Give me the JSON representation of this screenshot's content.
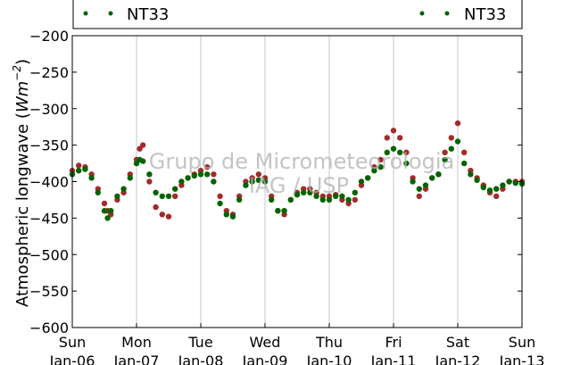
{
  "chart_data": {
    "type": "scatter",
    "title": "",
    "ylabel_text": "Atmospheric longwave (",
    "ylabel_unit_base": "Wm",
    "ylabel_unit_exp": "−2",
    "ylabel_close": ")",
    "ylim": [
      -600,
      -200
    ],
    "yticks": [
      -200,
      -250,
      -300,
      -350,
      -400,
      -450,
      -500,
      -550,
      -600
    ],
    "ytick_labels": [
      "−200",
      "−250",
      "−300",
      "−350",
      "−400",
      "−450",
      "−500",
      "−550",
      "−600"
    ],
    "x_ticks": [
      {
        "day": "Sun",
        "date": "Jan-06"
      },
      {
        "day": "Mon",
        "date": "Jan-07"
      },
      {
        "day": "Tue",
        "date": "Jan-08"
      },
      {
        "day": "Wed",
        "date": "Jan-09"
      },
      {
        "day": "Thu",
        "date": "Jan-10"
      },
      {
        "day": "Fri",
        "date": "Jan-11"
      },
      {
        "day": "Sat",
        "date": "Jan-12"
      },
      {
        "day": "Sun",
        "date": "Jan-13"
      }
    ],
    "xlim_days": [
      0,
      7
    ],
    "grid_x": true,
    "grid_y": false,
    "legend": {
      "placement": "top",
      "entries": [
        {
          "name": "NT33",
          "color": "#006400"
        },
        {
          "name": "NT33",
          "color": "#006400"
        }
      ]
    },
    "watermark": {
      "line1": "Grupo de Micrometeorologia",
      "line2": "IAG / USP"
    },
    "series": [
      {
        "color": "#a52a2a",
        "x": [
          0.0,
          0.1,
          0.2,
          0.3,
          0.4,
          0.5,
          0.55,
          0.6,
          0.7,
          0.8,
          0.9,
          1.0,
          1.05,
          1.1,
          1.2,
          1.3,
          1.4,
          1.5,
          1.6,
          1.7,
          1.8,
          1.9,
          2.0,
          2.1,
          2.2,
          2.3,
          2.4,
          2.5,
          2.6,
          2.7,
          2.8,
          2.9,
          3.0,
          3.1,
          3.2,
          3.3,
          3.4,
          3.5,
          3.6,
          3.7,
          3.8,
          3.9,
          4.0,
          4.1,
          4.2,
          4.3,
          4.4,
          4.5,
          4.6,
          4.7,
          4.8,
          4.9,
          5.0,
          5.1,
          5.2,
          5.3,
          5.4,
          5.5,
          5.6,
          5.7,
          5.8,
          5.9,
          6.0,
          6.1,
          6.2,
          6.3,
          6.4,
          6.5,
          6.6,
          6.7,
          6.8,
          6.9,
          7.0
        ],
        "y": [
          -385,
          -378,
          -380,
          -390,
          -410,
          -430,
          -440,
          -445,
          -425,
          -415,
          -390,
          -370,
          -355,
          -350,
          -400,
          -435,
          -445,
          -448,
          -420,
          -405,
          -395,
          -390,
          -385,
          -380,
          -390,
          -420,
          -440,
          -445,
          -420,
          -400,
          -395,
          -390,
          -395,
          -420,
          -440,
          -445,
          -425,
          -415,
          -410,
          -410,
          -415,
          -420,
          -420,
          -418,
          -425,
          -430,
          -425,
          -405,
          -395,
          -380,
          -370,
          -340,
          -330,
          -340,
          -360,
          -395,
          -420,
          -410,
          -395,
          -390,
          -360,
          -340,
          -320,
          -360,
          -385,
          -395,
          -405,
          -415,
          -420,
          -410,
          -400,
          -400,
          -400
        ]
      },
      {
        "color": "#006400",
        "x": [
          0.0,
          0.1,
          0.2,
          0.3,
          0.4,
          0.5,
          0.55,
          0.6,
          0.7,
          0.8,
          0.9,
          1.0,
          1.05,
          1.1,
          1.2,
          1.3,
          1.4,
          1.5,
          1.6,
          1.7,
          1.8,
          1.9,
          2.0,
          2.1,
          2.2,
          2.3,
          2.4,
          2.5,
          2.6,
          2.7,
          2.8,
          2.9,
          3.0,
          3.1,
          3.2,
          3.3,
          3.4,
          3.5,
          3.6,
          3.7,
          3.8,
          3.9,
          4.0,
          4.1,
          4.2,
          4.3,
          4.4,
          4.5,
          4.6,
          4.7,
          4.8,
          4.9,
          5.0,
          5.1,
          5.2,
          5.3,
          5.4,
          5.5,
          5.6,
          5.7,
          5.8,
          5.9,
          6.0,
          6.1,
          6.2,
          6.3,
          6.4,
          6.5,
          6.6,
          6.7,
          6.8,
          6.9,
          7.0
        ],
        "y": [
          -390,
          -385,
          -383,
          -395,
          -415,
          -440,
          -450,
          -440,
          -420,
          -410,
          -395,
          -375,
          -370,
          -372,
          -390,
          -415,
          -420,
          -420,
          -410,
          -400,
          -395,
          -392,
          -390,
          -390,
          -400,
          -430,
          -445,
          -448,
          -425,
          -405,
          -400,
          -398,
          -400,
          -425,
          -440,
          -440,
          -425,
          -418,
          -415,
          -415,
          -420,
          -425,
          -425,
          -420,
          -420,
          -425,
          -415,
          -400,
          -395,
          -385,
          -380,
          -360,
          -355,
          -360,
          -375,
          -400,
          -410,
          -405,
          -395,
          -390,
          -370,
          -355,
          -345,
          -375,
          -390,
          -398,
          -408,
          -412,
          -410,
          -405,
          -400,
          -402,
          -403
        ]
      }
    ]
  }
}
